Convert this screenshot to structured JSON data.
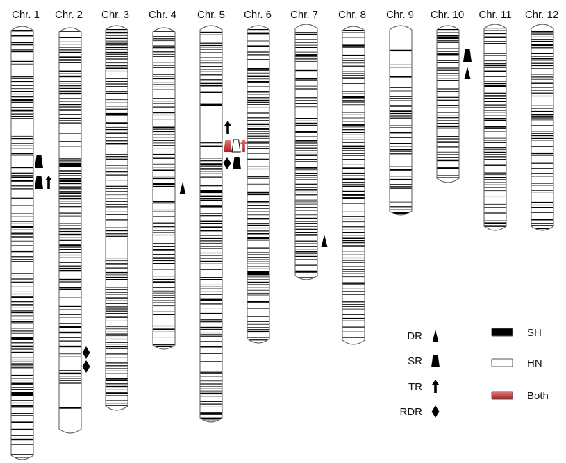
{
  "chromosomes": [
    {
      "label": "Chr. 1"
    },
    {
      "label": "Chr. 2"
    },
    {
      "label": "Chr. 3"
    },
    {
      "label": "Chr. 4"
    },
    {
      "label": "Chr. 5"
    },
    {
      "label": "Chr. 6"
    },
    {
      "label": "Chr. 7"
    },
    {
      "label": "Chr. 8"
    },
    {
      "label": "Chr. 9"
    },
    {
      "label": "Chr. 10"
    },
    {
      "label": "Chr. 11"
    },
    {
      "label": "Chr. 12"
    }
  ],
  "markers": [
    {
      "chromosome": "Chr. 1",
      "type": "SR",
      "status": "SH"
    },
    {
      "chromosome": "Chr. 1",
      "type": "SR",
      "status": "SH"
    },
    {
      "chromosome": "Chr. 1",
      "type": "TR",
      "status": "SH"
    },
    {
      "chromosome": "Chr. 2",
      "type": "RDR",
      "status": "SH"
    },
    {
      "chromosome": "Chr. 2",
      "type": "RDR",
      "status": "SH"
    },
    {
      "chromosome": "Chr. 4",
      "type": "DR",
      "status": "SH"
    },
    {
      "chromosome": "Chr. 5",
      "type": "TR",
      "status": "SH"
    },
    {
      "chromosome": "Chr. 5",
      "type": "SR",
      "status": "Both"
    },
    {
      "chromosome": "Chr. 5",
      "type": "SR",
      "status": "HN"
    },
    {
      "chromosome": "Chr. 5",
      "type": "TR",
      "status": "Both"
    },
    {
      "chromosome": "Chr. 5",
      "type": "RDR",
      "status": "SH"
    },
    {
      "chromosome": "Chr. 5",
      "type": "SR",
      "status": "SH"
    },
    {
      "chromosome": "Chr. 7",
      "type": "DR",
      "status": "SH"
    },
    {
      "chromosome": "Chr. 10",
      "type": "SR",
      "status": "SH"
    },
    {
      "chromosome": "Chr. 10",
      "type": "DR",
      "status": "SH"
    }
  ],
  "legend": {
    "types": [
      {
        "label": "DR",
        "icon": "dr-icon"
      },
      {
        "label": "SR",
        "icon": "sr-icon"
      },
      {
        "label": "TR",
        "icon": "tr-icon"
      },
      {
        "label": "RDR",
        "icon": "rdr-icon"
      }
    ],
    "states": [
      {
        "label": "SH",
        "color": "#000000"
      },
      {
        "label": "HN",
        "color": "#ffffff"
      },
      {
        "label": "Both",
        "color": "#c0282d"
      }
    ]
  },
  "colors": {
    "sh": "#000000",
    "hn": "#ffffff",
    "both": "#c0282d",
    "outline": "#555555"
  }
}
